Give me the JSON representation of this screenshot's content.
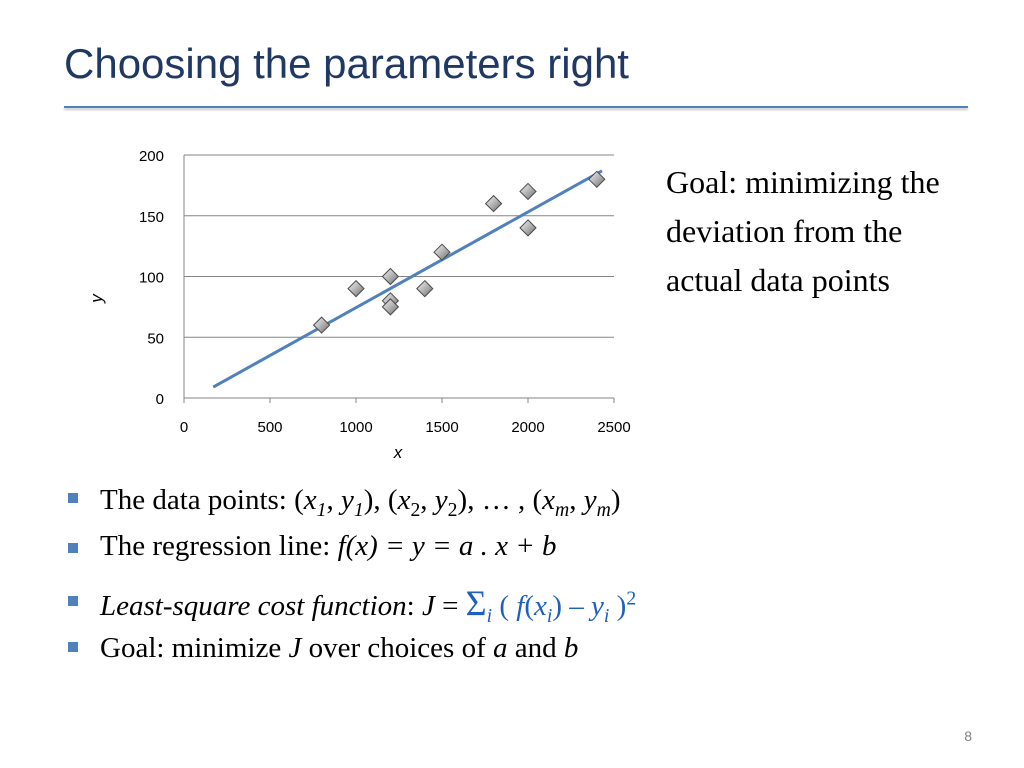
{
  "slide": {
    "title": "Choosing the parameters right",
    "page_number": "8"
  },
  "goal_text": "Goal: minimizing the deviation from the actual data points",
  "bullets": {
    "b1": {
      "prefix": "The data points: (",
      "x": "x",
      "sub1": "1",
      "y": "y",
      "sub2": "2",
      "subm": "m",
      "comma": ", ",
      "close_open": "), (",
      "ellipsis": "), … , (",
      "close": ")"
    },
    "b2": {
      "prefix": "The regression line: ",
      "formula": "f(x) = y = a . x + b"
    },
    "b3": {
      "italic": "Least-square cost function",
      "colon": ": ",
      "j": "J",
      "equals": " = ",
      "sigma": "Σ",
      "i": "i",
      "open": " ( ",
      "f": "f",
      "paren_open": "(",
      "x": "x",
      "paren_close": ")",
      "minus": " – ",
      "y": "y",
      "close": " )",
      "power": "2"
    },
    "b4": {
      "prefix": "Goal: minimize ",
      "j": "J",
      "mid": " over choices of ",
      "a": "a",
      "and": " and ",
      "b": "b"
    }
  },
  "chart_data": {
    "type": "scatter",
    "xlabel": "x",
    "ylabel": "y",
    "xlim": [
      0,
      2500
    ],
    "ylim": [
      0,
      200
    ],
    "xticks": [
      0,
      500,
      1000,
      1500,
      2000,
      2500
    ],
    "yticks": [
      0,
      50,
      100,
      150,
      200
    ],
    "grid": "horizontal",
    "points": [
      {
        "x": 800,
        "y": 60
      },
      {
        "x": 1000,
        "y": 90
      },
      {
        "x": 1200,
        "y": 100
      },
      {
        "x": 1200,
        "y": 80
      },
      {
        "x": 1200,
        "y": 75
      },
      {
        "x": 1400,
        "y": 90
      },
      {
        "x": 1500,
        "y": 120
      },
      {
        "x": 1800,
        "y": 160
      },
      {
        "x": 2000,
        "y": 170
      },
      {
        "x": 2000,
        "y": 140
      },
      {
        "x": 2400,
        "y": 180
      }
    ],
    "regression_line": {
      "x": [
        170,
        2430
      ],
      "y": [
        9,
        187
      ]
    },
    "colors": {
      "marker": "#909090",
      "line": "#4f81bd",
      "grid": "#868686"
    }
  }
}
